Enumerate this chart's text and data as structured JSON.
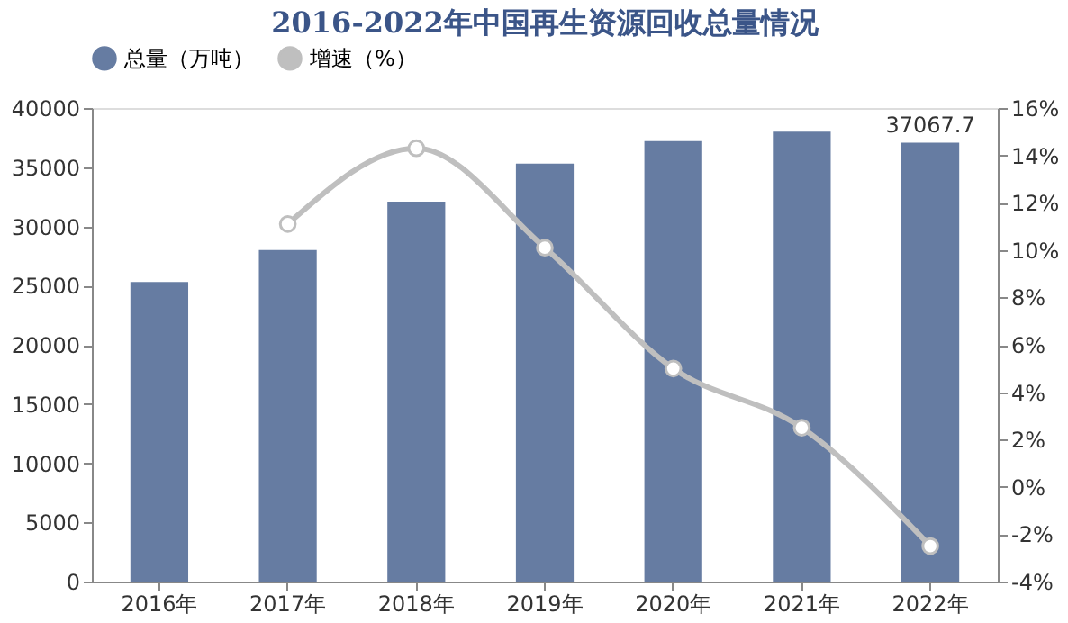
{
  "chart_data": {
    "type": "bar",
    "title": "2016-2022年中国再生资源回收总量情况",
    "categories": [
      "2016年",
      "2017年",
      "2018年",
      "2019年",
      "2020年",
      "2021年",
      "2022年"
    ],
    "series": [
      {
        "name": "总量（万吨）",
        "color": "#667ca2",
        "values": [
          25300,
          28000,
          32100,
          35300,
          37200,
          38000,
          37067.7
        ],
        "value_labels": [
          null,
          null,
          null,
          null,
          null,
          null,
          "37067.7"
        ]
      },
      {
        "name": "增速（%）",
        "type": "line",
        "axis": "y2",
        "color": "#bfbfbf",
        "marker": "circle",
        "values": [
          null,
          11.1,
          14.3,
          10.1,
          5.0,
          2.5,
          -2.5
        ]
      }
    ],
    "ylim": [
      0,
      40000
    ],
    "yticks": [
      0,
      5000,
      10000,
      15000,
      20000,
      25000,
      30000,
      35000,
      40000
    ],
    "y2lim": [
      -4,
      16
    ],
    "y2ticks": [
      {
        "value": -4,
        "label": "-4%"
      },
      {
        "value": -2,
        "label": "-2%"
      },
      {
        "value": 0,
        "label": "0%"
      },
      {
        "value": 2,
        "label": "2%"
      },
      {
        "value": 4,
        "label": "4%"
      },
      {
        "value": 6,
        "label": "6%"
      },
      {
        "value": 8,
        "label": "8%"
      },
      {
        "value": 10,
        "label": "10%"
      },
      {
        "value": 12,
        "label": "12%"
      },
      {
        "value": 14,
        "label": "14%"
      },
      {
        "value": 16,
        "label": "16%"
      }
    ],
    "legend": "top",
    "grid": false
  }
}
